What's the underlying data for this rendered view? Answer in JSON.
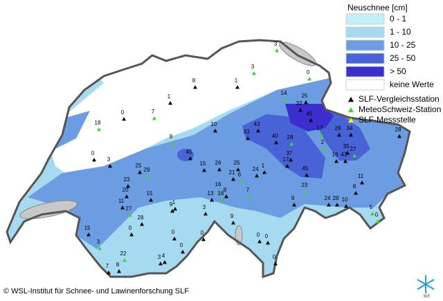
{
  "legend": {
    "title": "Neuschnee [cm]",
    "items": [
      {
        "label": "0 - 1",
        "color": "#c4f1f8"
      },
      {
        "label": "1 - 10",
        "color": "#a6daf0"
      },
      {
        "label": "10 - 25",
        "color": "#6c9de2"
      },
      {
        "label": "25 - 50",
        "color": "#4763d6"
      },
      {
        "label": "> 50",
        "color": "#3a2ed0"
      },
      {
        "label": "keine Werte",
        "color": "#ffffff"
      }
    ]
  },
  "station_legend": [
    {
      "label": "SLF-Vergleichsstation",
      "color": "#000000"
    },
    {
      "label": "MeteoSchweiz-Station",
      "color": "#3cd23c"
    },
    {
      "label": "SLF-Messstelle",
      "color": "#f0f000"
    }
  ],
  "stations": [
    3,
    0,
    3,
    8,
    1,
    1,
    14,
    25,
    32,
    0,
    7,
    18,
    45,
    10,
    43,
    17,
    28,
    34,
    28,
    33,
    40,
    28,
    8,
    2,
    0,
    45,
    35,
    41,
    27,
    16,
    37,
    17,
    3,
    15,
    26,
    25,
    25,
    29,
    45,
    24,
    1,
    21,
    6,
    23,
    11,
    23,
    16,
    20,
    15,
    8,
    7,
    13,
    16,
    8,
    9,
    11,
    27,
    24,
    28,
    10,
    9,
    1,
    3,
    5,
    28,
    0,
    9,
    15,
    0,
    0,
    0,
    0,
    0,
    3,
    0,
    22,
    4,
    3,
    0,
    7,
    8
  ],
  "copyright": "© WSL-Institut für Schnee- und Lawinenforschung SLF",
  "logo": "SLF"
}
